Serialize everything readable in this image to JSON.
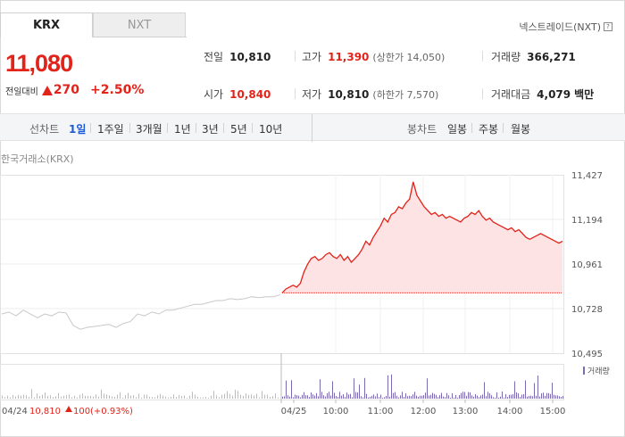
{
  "tabs": [
    {
      "label": "KRX"
    },
    {
      "label": "NXT"
    }
  ],
  "nxt_link": "넥스트레이드(NXT)",
  "price": {
    "current": "11,080",
    "change_label": "전일대비",
    "change": "270",
    "change_pct": "+2.50%"
  },
  "stats": {
    "prev_close": {
      "label": "전일",
      "value": "10,810"
    },
    "high": {
      "label": "고가",
      "value": "11,390",
      "limit": "(상한가 14,050)"
    },
    "volume": {
      "label": "거래량",
      "value": "366,271"
    },
    "open": {
      "label": "시가",
      "value": "10,840"
    },
    "low": {
      "label": "저가",
      "value": "10,810",
      "limit": "(하한가 7,570)"
    },
    "trade_value": {
      "label": "거래대금",
      "value": "4,079",
      "unit": "백만"
    }
  },
  "periods": {
    "line_label": "선차트",
    "line_items": [
      "1일",
      "1주일",
      "3개월",
      "1년",
      "3년",
      "5년",
      "10년"
    ],
    "active": "1일",
    "candle_label": "봉차트",
    "candle_items": [
      "일봉",
      "주봉",
      "월봉"
    ]
  },
  "exchange_label": "한국거래소(KRX)",
  "colors": {
    "up": "#e2231a",
    "active_period": "#1d5bd6",
    "prev_line": "#c8c8c8",
    "volume": "#7b6bb0"
  },
  "chart_data": {
    "type": "area",
    "y_ticks": [
      "11,427",
      "11,194",
      "10,961",
      "10,728",
      "10,495"
    ],
    "ylim": [
      10495,
      11427
    ],
    "x_ticks": [
      "04/25",
      "10:00",
      "11:00",
      "12:00",
      "13:00",
      "14:00",
      "15:00"
    ],
    "baseline": 10810,
    "prev_day": {
      "date": "04/24",
      "close": "10,810",
      "change": "100",
      "change_pct": "(+0.93%)",
      "values": [
        10700,
        10710,
        10690,
        10720,
        10700,
        10680,
        10700,
        10690,
        10710,
        10705,
        10640,
        10620,
        10630,
        10635,
        10640,
        10645,
        10630,
        10650,
        10660,
        10700,
        10690,
        10710,
        10700,
        10720,
        10720,
        10730,
        10740,
        10750,
        10750,
        10760,
        10770,
        10770,
        10780,
        10775,
        10780,
        10790,
        10785,
        10790,
        10790,
        10800
      ]
    },
    "today": {
      "values": [
        10810,
        10830,
        10840,
        10850,
        10840,
        10860,
        10920,
        10960,
        10990,
        11000,
        10980,
        10990,
        11010,
        11020,
        11000,
        10990,
        11010,
        10980,
        11000,
        10970,
        10990,
        11010,
        11040,
        11080,
        11060,
        11100,
        11130,
        11160,
        11200,
        11180,
        11220,
        11230,
        11260,
        11250,
        11280,
        11300,
        11390,
        11320,
        11290,
        11260,
        11240,
        11220,
        11230,
        11210,
        11220,
        11200,
        11210,
        11200,
        11190,
        11180,
        11200,
        11210,
        11230,
        11220,
        11240,
        11210,
        11190,
        11200,
        11180,
        11170,
        11160,
        11150,
        11140,
        11150,
        11130,
        11140,
        11120,
        11100,
        11090,
        11100,
        11110,
        11120,
        11110,
        11100,
        11090,
        11080,
        11070,
        11080
      ]
    },
    "volume_legend": "거래량"
  }
}
